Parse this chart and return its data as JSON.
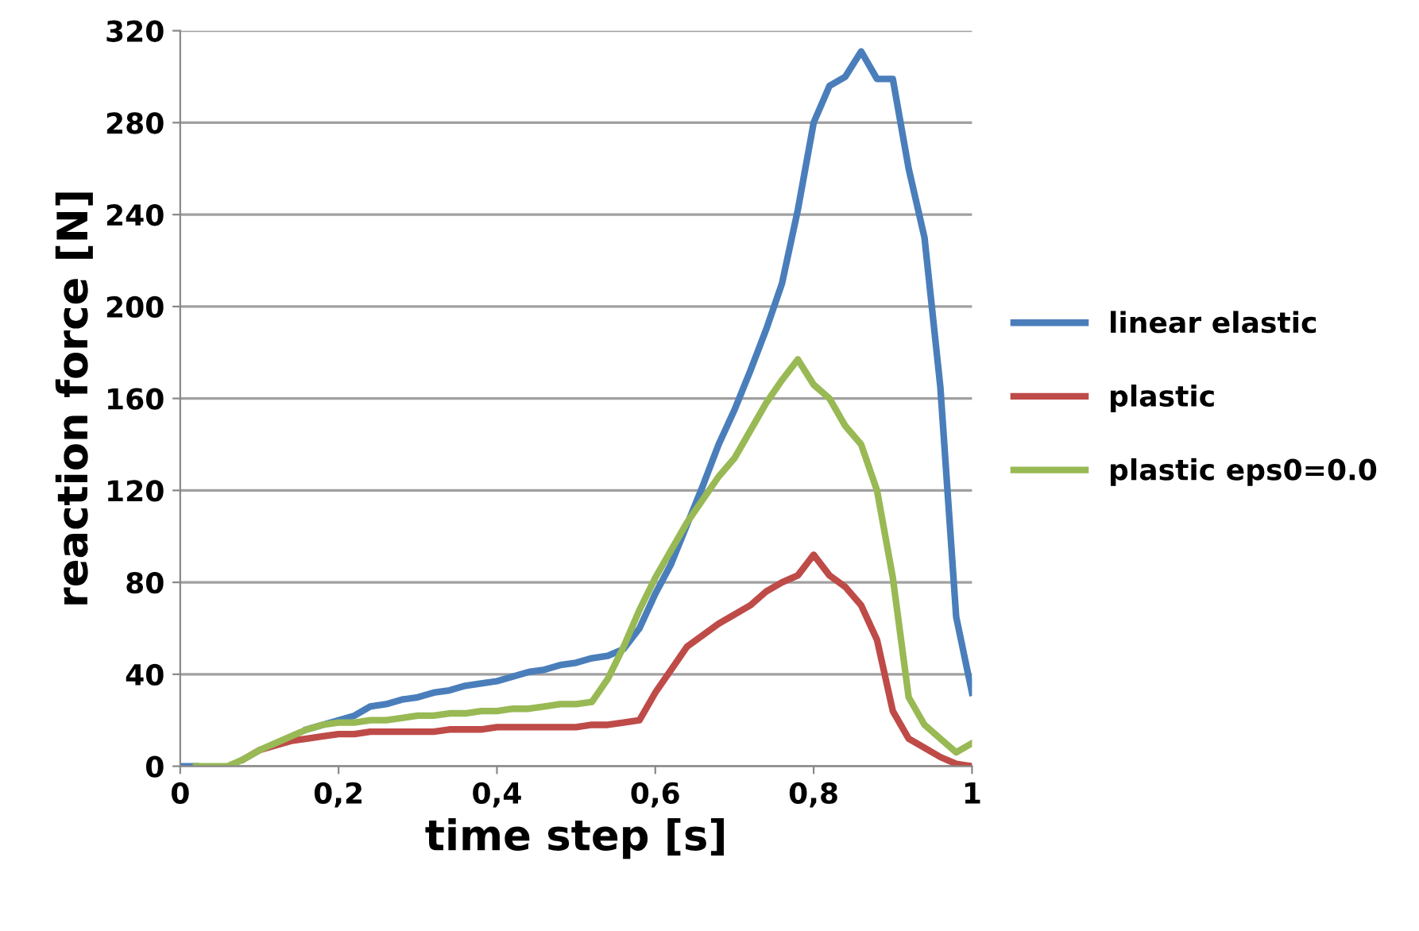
{
  "chart_data": {
    "type": "line",
    "xlabel": "time step [s]",
    "ylabel": "reaction force [N]",
    "x": [
      0,
      0.02,
      0.04,
      0.06,
      0.08,
      0.1,
      0.12,
      0.14,
      0.16,
      0.18,
      0.2,
      0.22,
      0.24,
      0.26,
      0.28,
      0.3,
      0.32,
      0.34,
      0.36,
      0.38,
      0.4,
      0.42,
      0.44,
      0.46,
      0.48,
      0.5,
      0.52,
      0.54,
      0.56,
      0.58,
      0.6,
      0.62,
      0.64,
      0.66,
      0.68,
      0.7,
      0.72,
      0.74,
      0.76,
      0.78,
      0.8,
      0.82,
      0.84,
      0.86,
      0.88,
      0.9,
      0.92,
      0.94,
      0.96,
      0.98,
      1
    ],
    "series": [
      {
        "name": "linear elastic",
        "color": "#4a7ebb",
        "values": [
          0,
          0,
          null,
          null,
          null,
          null,
          null,
          null,
          16,
          18,
          20,
          22,
          26,
          27,
          29,
          30,
          32,
          33,
          35,
          36,
          37,
          39,
          41,
          42,
          44,
          45,
          47,
          48,
          51,
          60,
          75,
          88,
          105,
          122,
          140,
          155,
          172,
          190,
          210,
          242,
          280,
          296,
          300,
          311,
          299,
          299,
          260,
          230,
          165,
          65,
          32
        ]
      },
      {
        "name": "plastic",
        "color": "#be4b48",
        "values": [
          null,
          null,
          null,
          null,
          3,
          7,
          9,
          11,
          12,
          13,
          14,
          14,
          15,
          15,
          15,
          15,
          15,
          16,
          16,
          16,
          17,
          17,
          17,
          17,
          17,
          17,
          18,
          18,
          19,
          20,
          32,
          42,
          52,
          57,
          62,
          66,
          70,
          76,
          80,
          83,
          92,
          83,
          78,
          70,
          55,
          24,
          12,
          8,
          4,
          1,
          0
        ]
      },
      {
        "name": "plastic eps0=0.0",
        "color": "#98b954",
        "values": [
          null,
          0,
          0,
          0,
          3,
          7,
          10,
          13,
          16,
          18,
          19,
          19,
          20,
          20,
          21,
          22,
          22,
          23,
          23,
          24,
          24,
          25,
          25,
          26,
          27,
          27,
          28,
          38,
          52,
          68,
          82,
          94,
          106,
          116,
          126,
          134,
          146,
          158,
          168,
          177,
          166,
          160,
          148,
          140,
          120,
          82,
          30,
          18,
          12,
          6,
          10
        ]
      }
    ],
    "xlim": [
      0,
      1
    ],
    "xticks": [
      0,
      {
        "value": 0.2,
        "label": "0,2"
      },
      {
        "value": 0.4,
        "label": "0,4"
      },
      {
        "value": 0.6,
        "label": "0,6"
      },
      {
        "value": 0.8,
        "label": "0,8"
      },
      1
    ],
    "ylim": [
      0,
      320
    ],
    "yticks": [
      0,
      40,
      80,
      120,
      160,
      200,
      240,
      280,
      320
    ],
    "grid": "y",
    "legend": "right",
    "line_style": "solid"
  }
}
